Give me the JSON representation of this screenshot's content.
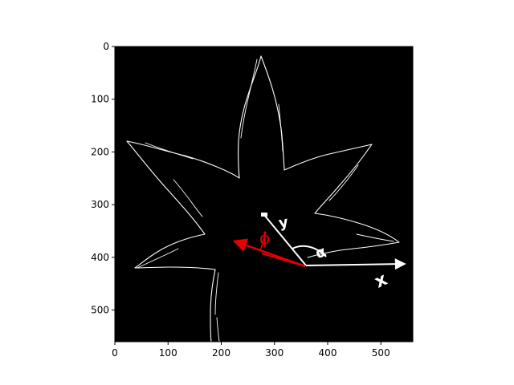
{
  "chart_data": {
    "type": "image",
    "description_free": true,
    "xlim": [
      0,
      560
    ],
    "ylim": [
      560,
      0
    ],
    "x_ticks": [
      0,
      100,
      200,
      300,
      400,
      500
    ],
    "y_ticks": [
      0,
      100,
      200,
      300,
      400,
      500
    ],
    "x_tick_labels": [
      "0",
      "100",
      "200",
      "300",
      "400",
      "500"
    ],
    "y_tick_labels": [
      "0",
      "100",
      "200",
      "300",
      "400",
      "500"
    ],
    "title": "",
    "xlabel": "",
    "ylabel": "",
    "background_color": "#000000",
    "edge_color": "#ffffff",
    "accent_color": "#e60000",
    "annotations": {
      "x_symbol": "x",
      "y_symbol": "y",
      "alpha_symbol": "α",
      "phi_symbol": "ϕ"
    },
    "vectors": {
      "origin": [
        360,
        414
      ],
      "x_axis_tip": [
        552,
        410
      ],
      "y_axis_tip": [
        280,
        316
      ],
      "red_arrow_tip": [
        222,
        366
      ],
      "red_short_tip": [
        255,
        390
      ]
    }
  }
}
